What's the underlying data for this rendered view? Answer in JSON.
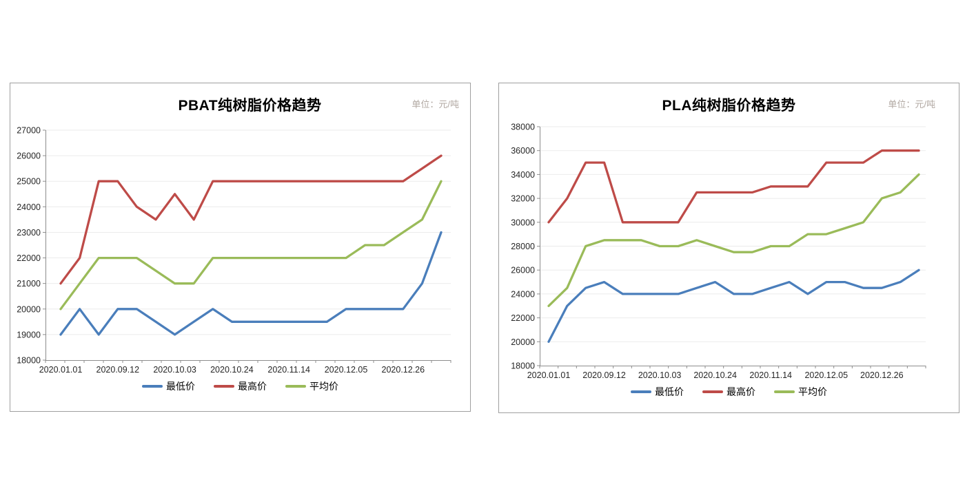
{
  "chart_data": [
    {
      "type": "line",
      "title": "PBAT纯树脂价格趋势",
      "unit_label": "单位：元/吨",
      "ylim": [
        18000,
        27000
      ],
      "y_ticks": [
        27000,
        26000,
        25000,
        24000,
        23000,
        22000,
        21000,
        20000,
        19000,
        18000
      ],
      "x_labels": [
        "2020.01.01",
        "2020.09.12",
        "2020.10.03",
        "2020.10.24",
        "2020.11.14",
        "2020.12.05",
        "2020.12.26"
      ],
      "x_label_positions": [
        0,
        3,
        6,
        9,
        12,
        15,
        18
      ],
      "n_points": 21,
      "grid": true,
      "legend_position": "bottom",
      "series": [
        {
          "name": "最低价",
          "color": "#4a7ebb",
          "values": [
            19000,
            20000,
            19000,
            20000,
            20000,
            19500,
            19000,
            19500,
            20000,
            19500,
            19500,
            19500,
            19500,
            19500,
            19500,
            20000,
            20000,
            20000,
            20000,
            21000,
            23000
          ]
        },
        {
          "name": "最高价",
          "color": "#be4b48",
          "values": [
            21000,
            22000,
            25000,
            25000,
            24000,
            23500,
            24500,
            23500,
            25000,
            25000,
            25000,
            25000,
            25000,
            25000,
            25000,
            25000,
            25000,
            25000,
            25000,
            25500,
            26000
          ]
        },
        {
          "name": "平均价",
          "color": "#9abb59",
          "values": [
            20000,
            21000,
            22000,
            22000,
            22000,
            21500,
            21000,
            21000,
            22000,
            22000,
            22000,
            22000,
            22000,
            22000,
            22000,
            22000,
            22500,
            22500,
            23000,
            23500,
            25000
          ]
        }
      ]
    },
    {
      "type": "line",
      "title": "PLA纯树脂价格趋势",
      "unit_label": "单位：元/吨",
      "ylim": [
        18000,
        38000
      ],
      "y_ticks": [
        38000,
        36000,
        34000,
        32000,
        30000,
        28000,
        26000,
        24000,
        22000,
        20000,
        18000
      ],
      "x_labels": [
        "2020.01.01",
        "2020.09.12",
        "2020.10.03",
        "2020.10.24",
        "2020.11.14",
        "2020.12.05",
        "2020.12.26"
      ],
      "x_label_positions": [
        0,
        3,
        6,
        9,
        12,
        15,
        18
      ],
      "n_points": 21,
      "grid": true,
      "legend_position": "bottom",
      "series": [
        {
          "name": "最低价",
          "color": "#4a7ebb",
          "values": [
            20000,
            23000,
            24500,
            25000,
            24000,
            24000,
            24000,
            24000,
            24500,
            25000,
            24000,
            24000,
            24500,
            25000,
            24000,
            25000,
            25000,
            24500,
            24500,
            25000,
            26000
          ]
        },
        {
          "name": "最高价",
          "color": "#be4b48",
          "values": [
            30000,
            32000,
            35000,
            35000,
            30000,
            30000,
            30000,
            30000,
            32500,
            32500,
            32500,
            32500,
            33000,
            33000,
            33000,
            35000,
            35000,
            35000,
            36000,
            36000,
            36000
          ]
        },
        {
          "name": "平均价",
          "color": "#9abb59",
          "values": [
            23000,
            24500,
            28000,
            28500,
            28500,
            28500,
            28000,
            28000,
            28500,
            28000,
            27500,
            27500,
            28000,
            28000,
            29000,
            29000,
            29500,
            30000,
            32000,
            32500,
            34000
          ]
        }
      ]
    }
  ],
  "style_colors": {
    "axis": "#8c8c8c",
    "grid": "#ebebeb",
    "tick_label": "#262626"
  }
}
